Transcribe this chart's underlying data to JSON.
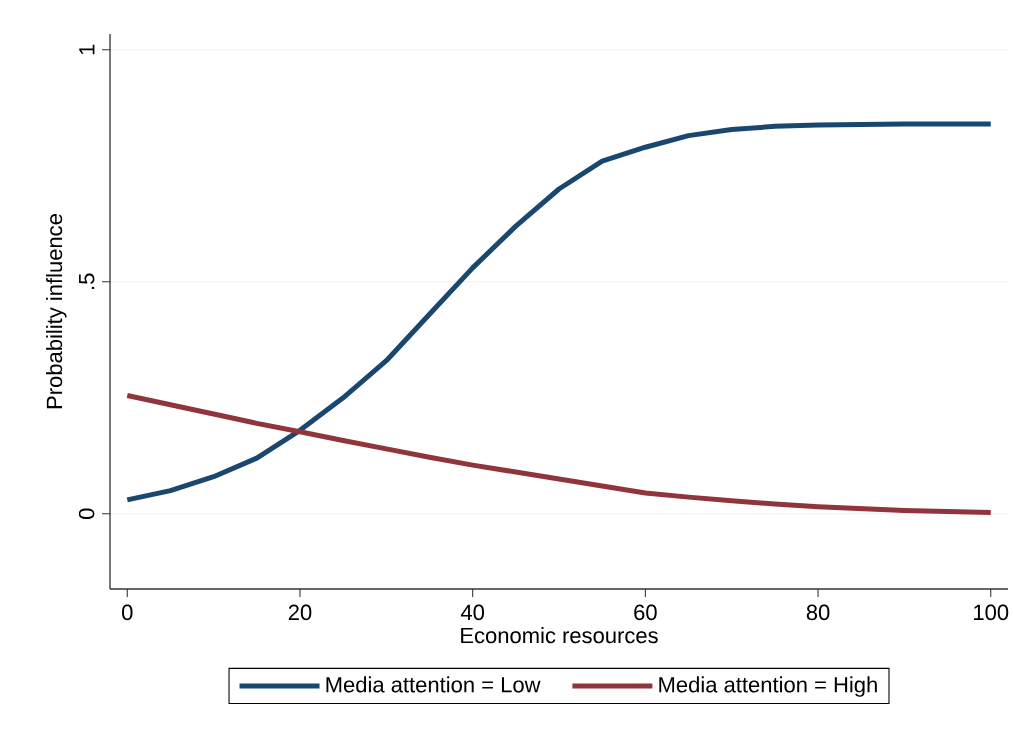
{
  "chart_data": {
    "type": "line",
    "xlabel": "Economic resources",
    "ylabel": "Probability influence",
    "x": [
      0,
      5,
      10,
      15,
      20,
      25,
      30,
      35,
      40,
      45,
      50,
      55,
      60,
      65,
      70,
      75,
      80,
      90,
      100
    ],
    "series": [
      {
        "name": "Media attention = Low",
        "color": "#1a476f",
        "values": [
          0.03,
          0.05,
          0.08,
          0.12,
          0.18,
          0.25,
          0.33,
          0.43,
          0.53,
          0.62,
          0.7,
          0.76,
          0.79,
          0.815,
          0.828,
          0.835,
          0.838,
          0.84,
          0.84
        ]
      },
      {
        "name": "Media attention = High",
        "color": "#90353b",
        "values": [
          0.255,
          0.235,
          0.215,
          0.195,
          0.177,
          0.158,
          0.14,
          0.122,
          0.105,
          0.09,
          0.075,
          0.06,
          0.045,
          0.036,
          0.028,
          0.021,
          0.015,
          0.007,
          0.003
        ]
      }
    ],
    "xlim": [
      -2,
      102
    ],
    "ylim": [
      -0.162,
      1.034
    ],
    "xticks": [
      0,
      20,
      40,
      60,
      80,
      100
    ],
    "yticks": [
      0,
      {
        "value": 0.5,
        "label": ".5"
      },
      1
    ],
    "grid": "y",
    "legend": "bottom",
    "marker": "none",
    "line_style": "solid"
  }
}
